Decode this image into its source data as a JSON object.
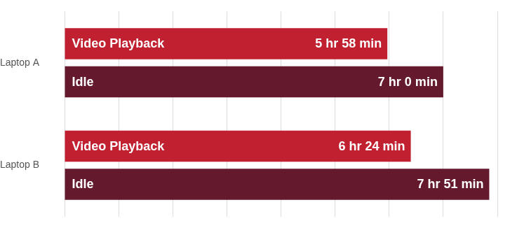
{
  "chart_data": {
    "type": "bar",
    "orientation": "horizontal",
    "categories": [
      "Laptop A",
      "Laptop B"
    ],
    "series": [
      {
        "name": "Video Playback",
        "color": "#c0202f",
        "values": [
          358,
          384
        ],
        "value_labels": [
          "5 hr 58 min",
          "6 hr 24 min"
        ]
      },
      {
        "name": "Idle",
        "color": "#641a2c",
        "values": [
          420,
          471
        ],
        "value_labels": [
          "7 hr 0 min",
          "7 hr 51 min"
        ]
      }
    ],
    "xlim": [
      0,
      480
    ],
    "xticks": [
      0,
      60,
      120,
      180,
      240,
      300,
      360,
      420,
      480
    ],
    "grid": true,
    "tick_labels": "y",
    "data_labels": true
  }
}
